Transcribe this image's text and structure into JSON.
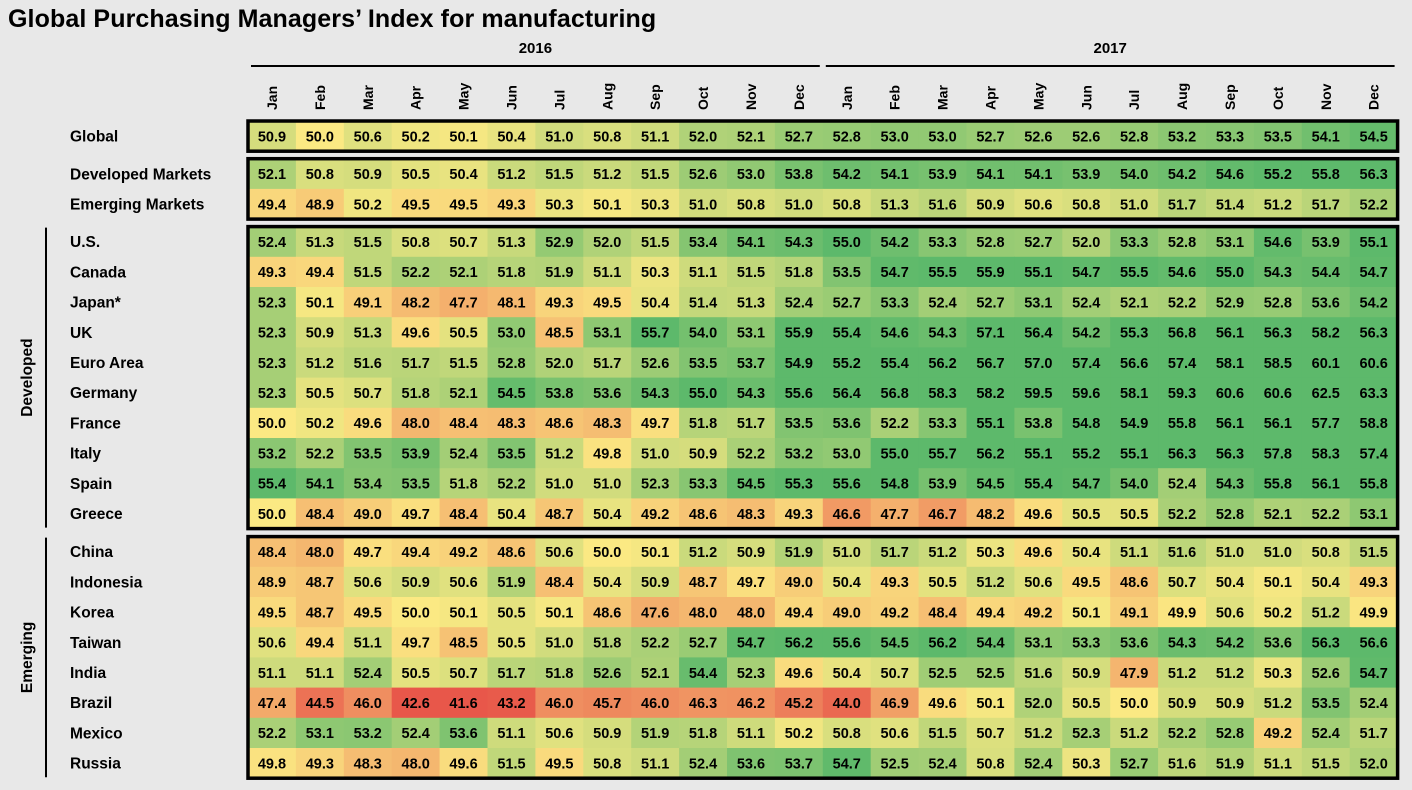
{
  "title": "Global Purchasing Managers’ Index for manufacturing",
  "chart_data": {
    "type": "heatmap",
    "title": "Global Purchasing Managers’ Index for manufacturing",
    "years": [
      {
        "label": "2016",
        "months": 12
      },
      {
        "label": "2017",
        "months": 12
      }
    ],
    "months": [
      "Jan",
      "Feb",
      "Mar",
      "Apr",
      "May",
      "Jun",
      "Jul",
      "Aug",
      "Sep",
      "Oct",
      "Nov",
      "Dec",
      "Jan",
      "Feb",
      "Mar",
      "Apr",
      "May",
      "Jun",
      "Jul",
      "Aug",
      "Sep",
      "Oct",
      "Nov",
      "Dec"
    ],
    "group_labels": [
      "Developed",
      "Emerging"
    ],
    "color_scale": {
      "low": "#e8574a",
      "mid": "#fbe983",
      "high": "#5db96b"
    },
    "blocks": [
      {
        "group": "",
        "rows": [
          {
            "name": "Global",
            "values": [
              50.9,
              50.0,
              50.6,
              50.2,
              50.1,
              50.4,
              51.0,
              50.8,
              51.1,
              52.0,
              52.1,
              52.7,
              52.8,
              53.0,
              53.0,
              52.7,
              52.6,
              52.6,
              52.8,
              53.2,
              53.3,
              53.5,
              54.1,
              54.5
            ]
          }
        ]
      },
      {
        "group": "",
        "rows": [
          {
            "name": "Developed Markets",
            "values": [
              52.1,
              50.8,
              50.9,
              50.5,
              50.4,
              51.2,
              51.5,
              51.2,
              51.5,
              52.6,
              53.0,
              53.8,
              54.2,
              54.1,
              53.9,
              54.1,
              54.1,
              53.9,
              54.0,
              54.2,
              54.6,
              55.2,
              55.8,
              56.3
            ]
          },
          {
            "name": "Emerging Markets",
            "values": [
              49.4,
              48.9,
              50.2,
              49.5,
              49.5,
              49.3,
              50.3,
              50.1,
              50.3,
              51.0,
              50.8,
              51.0,
              50.8,
              51.3,
              51.6,
              50.9,
              50.6,
              50.8,
              51.0,
              51.7,
              51.4,
              51.2,
              51.7,
              52.2
            ]
          }
        ]
      },
      {
        "group": "Developed",
        "rows": [
          {
            "name": "U.S.",
            "values": [
              52.4,
              51.3,
              51.5,
              50.8,
              50.7,
              51.3,
              52.9,
              52.0,
              51.5,
              53.4,
              54.1,
              54.3,
              55.0,
              54.2,
              53.3,
              52.8,
              52.7,
              52.0,
              53.3,
              52.8,
              53.1,
              54.6,
              53.9,
              55.1
            ]
          },
          {
            "name": "Canada",
            "values": [
              49.3,
              49.4,
              51.5,
              52.2,
              52.1,
              51.8,
              51.9,
              51.1,
              50.3,
              51.1,
              51.5,
              51.8,
              53.5,
              54.7,
              55.5,
              55.9,
              55.1,
              54.7,
              55.5,
              54.6,
              55.0,
              54.3,
              54.4,
              54.7
            ]
          },
          {
            "name": "Japan*",
            "values": [
              52.3,
              50.1,
              49.1,
              48.2,
              47.7,
              48.1,
              49.3,
              49.5,
              50.4,
              51.4,
              51.3,
              52.4,
              52.7,
              53.3,
              52.4,
              52.7,
              53.1,
              52.4,
              52.1,
              52.2,
              52.9,
              52.8,
              53.6,
              54.2
            ]
          },
          {
            "name": "UK",
            "values": [
              52.3,
              50.9,
              51.3,
              49.6,
              50.5,
              53.0,
              48.5,
              53.1,
              55.7,
              54.0,
              53.1,
              55.9,
              55.4,
              54.6,
              54.3,
              57.1,
              56.4,
              54.2,
              55.3,
              56.8,
              56.1,
              56.3,
              58.2,
              56.3
            ]
          },
          {
            "name": "Euro Area",
            "values": [
              52.3,
              51.2,
              51.6,
              51.7,
              51.5,
              52.8,
              52.0,
              51.7,
              52.6,
              53.5,
              53.7,
              54.9,
              55.2,
              55.4,
              56.2,
              56.7,
              57.0,
              57.4,
              56.6,
              57.4,
              58.1,
              58.5,
              60.1,
              60.6
            ]
          },
          {
            "name": "Germany",
            "values": [
              52.3,
              50.5,
              50.7,
              51.8,
              52.1,
              54.5,
              53.8,
              53.6,
              54.3,
              55.0,
              54.3,
              55.6,
              56.4,
              56.8,
              58.3,
              58.2,
              59.5,
              59.6,
              58.1,
              59.3,
              60.6,
              60.6,
              62.5,
              63.3
            ]
          },
          {
            "name": "France",
            "values": [
              50.0,
              50.2,
              49.6,
              48.0,
              48.4,
              48.3,
              48.6,
              48.3,
              49.7,
              51.8,
              51.7,
              53.5,
              53.6,
              52.2,
              53.3,
              55.1,
              53.8,
              54.8,
              54.9,
              55.8,
              56.1,
              56.1,
              57.7,
              58.8
            ]
          },
          {
            "name": "Italy",
            "values": [
              53.2,
              52.2,
              53.5,
              53.9,
              52.4,
              53.5,
              51.2,
              49.8,
              51.0,
              50.9,
              52.2,
              53.2,
              53.0,
              55.0,
              55.7,
              56.2,
              55.1,
              55.2,
              55.1,
              56.3,
              56.3,
              57.8,
              58.3,
              57.4
            ]
          },
          {
            "name": "Spain",
            "values": [
              55.4,
              54.1,
              53.4,
              53.5,
              51.8,
              52.2,
              51.0,
              51.0,
              52.3,
              53.3,
              54.5,
              55.3,
              55.6,
              54.8,
              53.9,
              54.5,
              55.4,
              54.7,
              54.0,
              52.4,
              54.3,
              55.8,
              56.1,
              55.8
            ]
          },
          {
            "name": "Greece",
            "values": [
              50.0,
              48.4,
              49.0,
              49.7,
              48.4,
              50.4,
              48.7,
              50.4,
              49.2,
              48.6,
              48.3,
              49.3,
              46.6,
              47.7,
              46.7,
              48.2,
              49.6,
              50.5,
              50.5,
              52.2,
              52.8,
              52.1,
              52.2,
              53.1
            ]
          }
        ]
      },
      {
        "group": "Emerging",
        "rows": [
          {
            "name": "China",
            "values": [
              48.4,
              48.0,
              49.7,
              49.4,
              49.2,
              48.6,
              50.6,
              50.0,
              50.1,
              51.2,
              50.9,
              51.9,
              51.0,
              51.7,
              51.2,
              50.3,
              49.6,
              50.4,
              51.1,
              51.6,
              51.0,
              51.0,
              50.8,
              51.5
            ]
          },
          {
            "name": "Indonesia",
            "values": [
              48.9,
              48.7,
              50.6,
              50.9,
              50.6,
              51.9,
              48.4,
              50.4,
              50.9,
              48.7,
              49.7,
              49.0,
              50.4,
              49.3,
              50.5,
              51.2,
              50.6,
              49.5,
              48.6,
              50.7,
              50.4,
              50.1,
              50.4,
              49.3
            ]
          },
          {
            "name": "Korea",
            "values": [
              49.5,
              48.7,
              49.5,
              50.0,
              50.1,
              50.5,
              50.1,
              48.6,
              47.6,
              48.0,
              48.0,
              49.4,
              49.0,
              49.2,
              48.4,
              49.4,
              49.2,
              50.1,
              49.1,
              49.9,
              50.6,
              50.2,
              51.2,
              49.9
            ]
          },
          {
            "name": "Taiwan",
            "values": [
              50.6,
              49.4,
              51.1,
              49.7,
              48.5,
              50.5,
              51.0,
              51.8,
              52.2,
              52.7,
              54.7,
              56.2,
              55.6,
              54.5,
              56.2,
              54.4,
              53.1,
              53.3,
              53.6,
              54.3,
              54.2,
              53.6,
              56.3,
              56.6
            ]
          },
          {
            "name": "India",
            "values": [
              51.1,
              51.1,
              52.4,
              50.5,
              50.7,
              51.7,
              51.8,
              52.6,
              52.1,
              54.4,
              52.3,
              49.6,
              50.4,
              50.7,
              52.5,
              52.5,
              51.6,
              50.9,
              47.9,
              51.2,
              51.2,
              50.3,
              52.6,
              54.7
            ]
          },
          {
            "name": "Brazil",
            "values": [
              47.4,
              44.5,
              46.0,
              42.6,
              41.6,
              43.2,
              46.0,
              45.7,
              46.0,
              46.3,
              46.2,
              45.2,
              44.0,
              46.9,
              49.6,
              50.1,
              52.0,
              50.5,
              50.0,
              50.9,
              50.9,
              51.2,
              53.5,
              52.4
            ]
          },
          {
            "name": "Mexico",
            "values": [
              52.2,
              53.1,
              53.2,
              52.4,
              53.6,
              51.1,
              50.6,
              50.9,
              51.9,
              51.8,
              51.1,
              50.2,
              50.8,
              50.6,
              51.5,
              50.7,
              51.2,
              52.3,
              51.2,
              52.2,
              52.8,
              49.2,
              52.4,
              51.7
            ]
          },
          {
            "name": "Russia",
            "values": [
              49.8,
              49.3,
              48.3,
              48.0,
              49.6,
              51.5,
              49.5,
              50.8,
              51.1,
              52.4,
              53.6,
              53.7,
              54.7,
              52.5,
              52.4,
              50.8,
              52.4,
              50.3,
              52.7,
              51.6,
              51.9,
              51.1,
              51.5,
              52.0
            ]
          }
        ]
      }
    ]
  }
}
